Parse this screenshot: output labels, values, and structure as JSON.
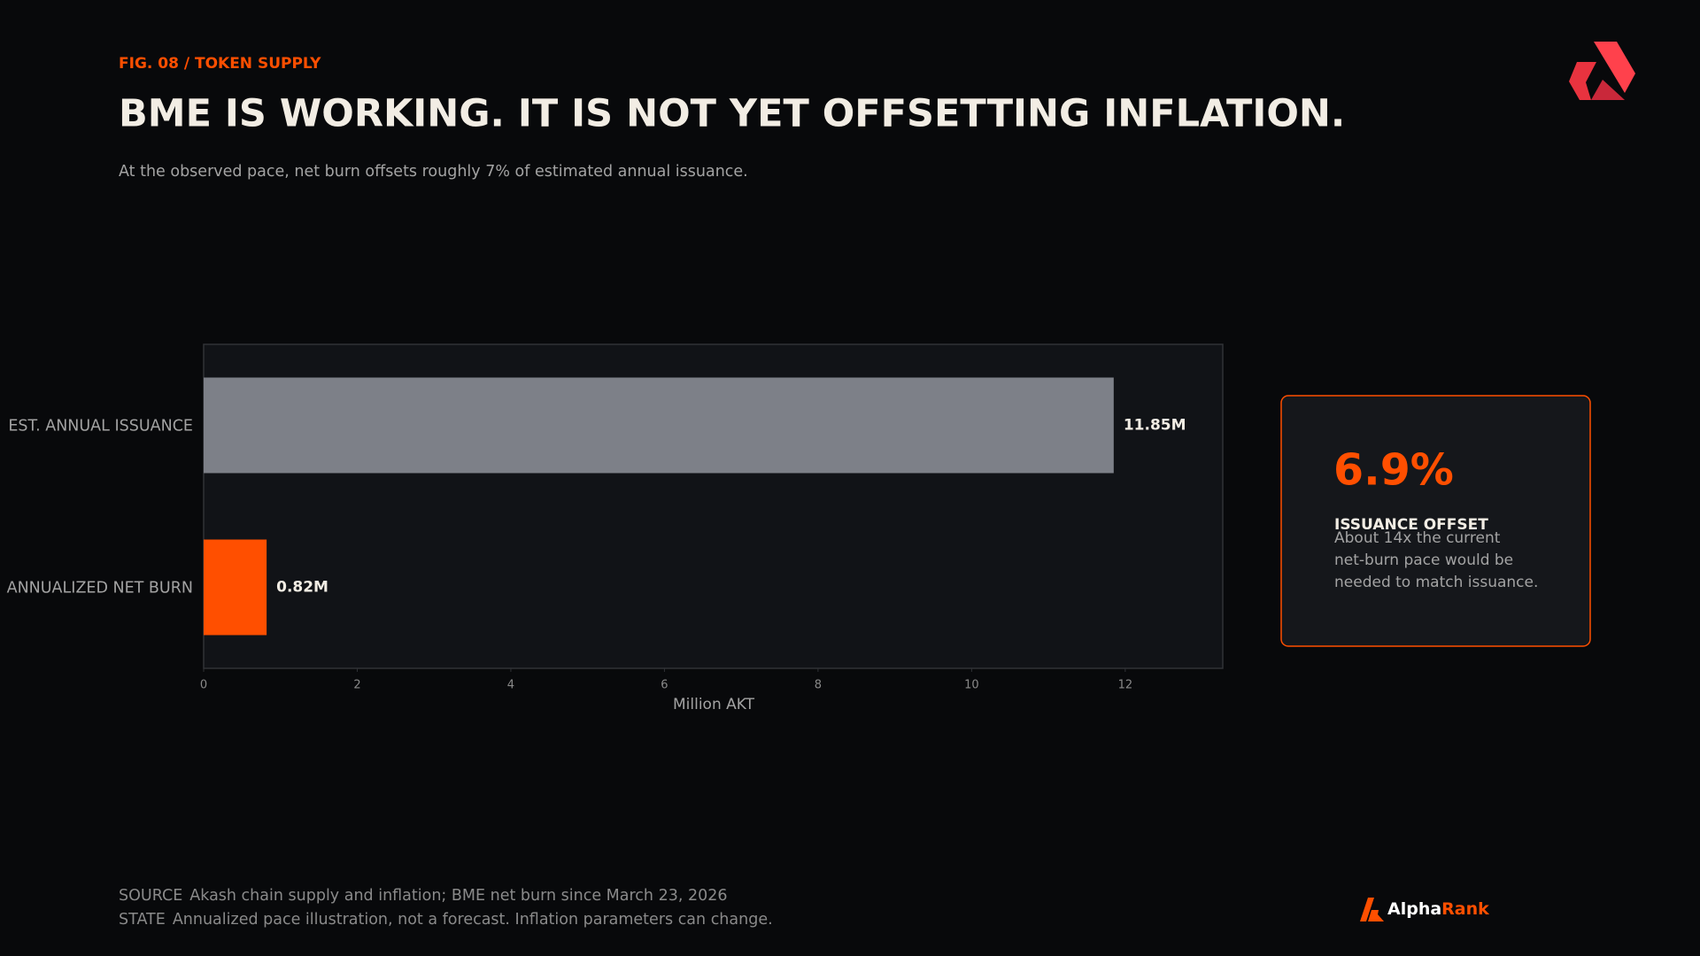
{
  "header": {
    "figure_label": "FIG. 08 / TOKEN SUPPLY",
    "title": "BME IS WORKING. IT IS NOT YET OFFSETTING INFLATION.",
    "subtitle": "At the observed pace, net burn offsets roughly 7% of estimated annual issuance."
  },
  "chart_data": {
    "type": "bar",
    "orientation": "horizontal",
    "categories": [
      "EST. ANNUAL ISSUANCE",
      "ANNUALIZED NET BURN"
    ],
    "values": [
      11.85,
      0.82
    ],
    "value_labels": [
      "11.85M",
      "0.82M"
    ],
    "colors": [
      "#7d8088",
      "#ff4f00"
    ],
    "xlim": [
      0,
      13.27
    ],
    "xticks": [
      0,
      2,
      4,
      6,
      8,
      10,
      12
    ],
    "xlabel": "Million AKT",
    "grid": false
  },
  "callout": {
    "value": "6.9%",
    "label": "ISSUANCE OFFSET",
    "lines": [
      "About 14x the current",
      "net-burn pace would be",
      "needed to match issuance."
    ]
  },
  "footer": {
    "source_key": "SOURCE",
    "source_text": "Akash chain supply and inflation; BME net burn since March 23, 2026",
    "state_key": "STATE",
    "state_text": "Annualized pace illustration, not a forecast. Inflation parameters can change."
  },
  "brand": {
    "first": "Alpha",
    "second": "Rank"
  }
}
